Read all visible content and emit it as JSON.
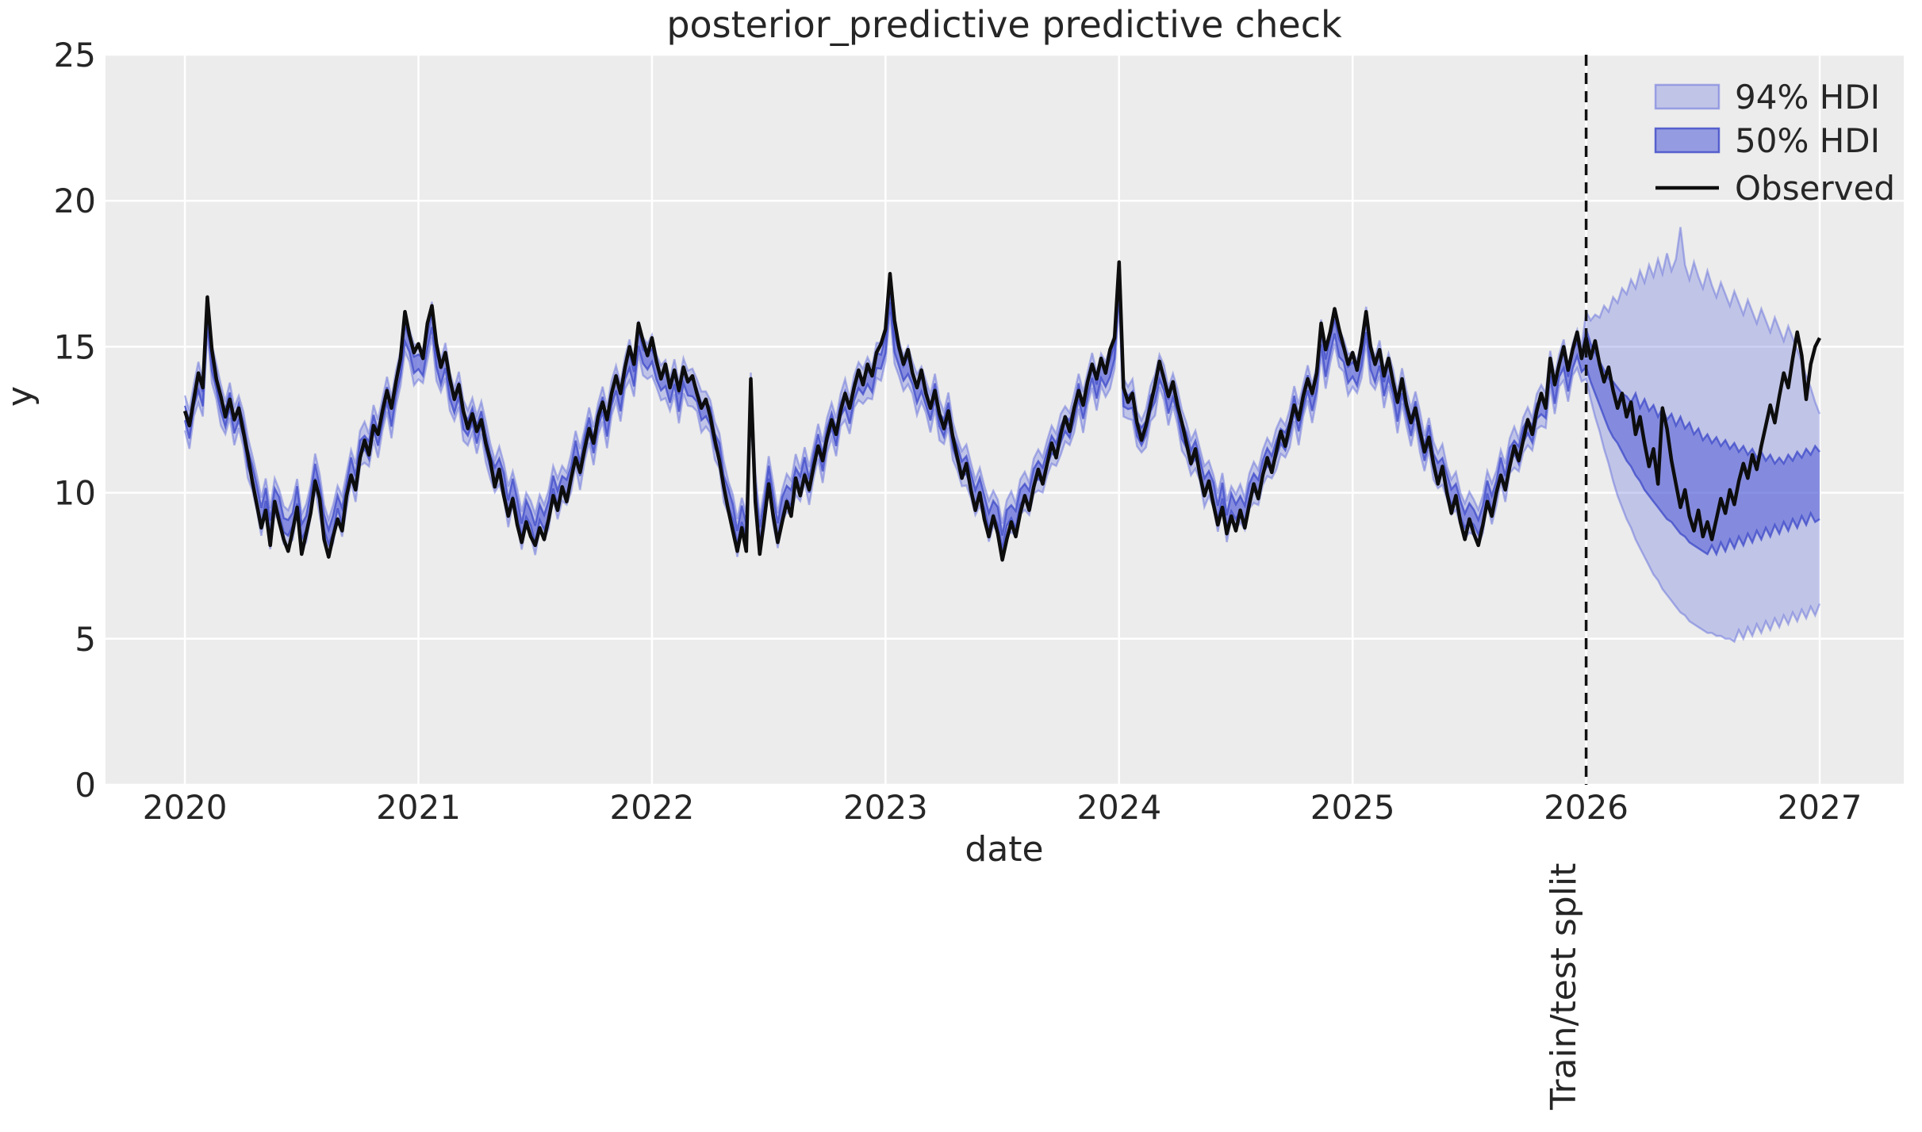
{
  "figure": {
    "title": "posterior_predictive predictive check"
  },
  "axes": {
    "xlabel": "date",
    "ylabel": "y",
    "xlim": [
      2019.66,
      2027.36
    ],
    "ylim": [
      0,
      25
    ],
    "x_ticks": [
      "2020",
      "2021",
      "2022",
      "2023",
      "2024",
      "2025",
      "2026",
      "2027"
    ],
    "x_tick_values": [
      2020,
      2021,
      2022,
      2023,
      2024,
      2025,
      2026,
      2027
    ],
    "y_ticks": [
      "0",
      "5",
      "10",
      "15",
      "20",
      "25"
    ],
    "y_tick_values": [
      0,
      5,
      10,
      15,
      20,
      25
    ],
    "grid": "white-on-gray"
  },
  "legend": {
    "position": "upper-right",
    "items": [
      {
        "label": "94% HDI",
        "type": "patch"
      },
      {
        "label": "50% HDI",
        "type": "patch"
      },
      {
        "label": "Observed",
        "type": "line"
      }
    ]
  },
  "annotation": {
    "split_label": "Train/test split",
    "split_x": 2026
  },
  "colors": {
    "figure_bg": "#ffffff",
    "plot_bg": "#ECECEC",
    "grid": "#ffffff",
    "band_base": "#5B66D9",
    "band94_alpha": 0.3,
    "band50_alpha": 0.6,
    "band94_edge": "rgba(91,102,217,0.45)",
    "band50_edge": "rgba(60,72,200,0.75)",
    "observed": "#0d0d0d",
    "split_line": "#111111",
    "text": "#262626"
  },
  "chart_data": {
    "type": "line",
    "title": "posterior_predictive predictive check",
    "xlabel": "date",
    "ylabel": "y",
    "x_start": 2020,
    "x_end": 2027,
    "points_per_year": 52,
    "n_points": 365,
    "observed": [
      12.8,
      12.3,
      13.2,
      14.1,
      13.6,
      16.7,
      14.9,
      13.9,
      13.3,
      12.6,
      13.2,
      12.5,
      12.9,
      12.1,
      11.3,
      10.4,
      9.6,
      8.8,
      9.4,
      8.2,
      9.7,
      9.0,
      8.4,
      8.0,
      8.7,
      9.5,
      7.9,
      8.6,
      9.3,
      10.4,
      9.8,
      8.4,
      7.8,
      8.5,
      9.1,
      8.7,
      9.9,
      10.6,
      10.1,
      11.2,
      11.8,
      11.3,
      12.3,
      12.0,
      12.8,
      13.5,
      12.9,
      13.8,
      14.6,
      16.2,
      15.4,
      14.8,
      15.1,
      14.6,
      15.8,
      16.4,
      15.1,
      14.3,
      14.8,
      13.9,
      13.2,
      13.7,
      12.8,
      12.2,
      12.7,
      12.1,
      12.5,
      11.7,
      11.1,
      10.2,
      10.8,
      9.9,
      9.2,
      9.8,
      8.9,
      8.3,
      9.0,
      8.5,
      8.2,
      8.8,
      8.4,
      9.1,
      9.9,
      9.4,
      10.2,
      9.7,
      10.5,
      11.2,
      10.7,
      11.5,
      12.2,
      11.7,
      12.6,
      13.1,
      12.5,
      13.4,
      14.0,
      13.4,
      14.3,
      15.0,
      14.4,
      15.8,
      15.2,
      14.7,
      15.3,
      14.5,
      13.9,
      14.4,
      13.6,
      14.2,
      13.5,
      14.3,
      13.8,
      14.0,
      13.4,
      12.9,
      13.2,
      12.6,
      11.8,
      11.1,
      10.2,
      9.4,
      8.7,
      8.0,
      8.8,
      8.0,
      13.9,
      9.7,
      7.9,
      9.1,
      10.3,
      9.2,
      8.3,
      9.0,
      9.7,
      9.2,
      10.5,
      9.9,
      10.6,
      10.1,
      10.9,
      11.6,
      11.1,
      11.9,
      12.5,
      12.0,
      12.8,
      13.4,
      12.9,
      13.6,
      14.2,
      13.7,
      14.4,
      14.0,
      14.8,
      15.1,
      15.6,
      17.5,
      15.9,
      15.0,
      14.4,
      14.9,
      14.1,
      13.6,
      14.2,
      13.4,
      12.9,
      13.5,
      12.7,
      12.2,
      12.8,
      11.9,
      11.2,
      10.5,
      11.0,
      10.1,
      9.4,
      10.0,
      9.1,
      8.5,
      9.2,
      8.6,
      7.7,
      8.4,
      9.0,
      8.5,
      9.3,
      9.9,
      9.4,
      10.2,
      10.8,
      10.3,
      11.0,
      11.7,
      11.2,
      12.0,
      12.6,
      12.1,
      12.9,
      13.5,
      13.0,
      13.8,
      14.4,
      13.9,
      14.6,
      14.1,
      14.9,
      15.3,
      17.9,
      13.6,
      13.1,
      13.4,
      12.4,
      11.8,
      12.3,
      13.0,
      13.7,
      14.5,
      13.9,
      13.3,
      13.8,
      13.0,
      12.4,
      11.7,
      11.0,
      11.5,
      10.6,
      9.9,
      10.4,
      9.6,
      8.9,
      9.5,
      8.6,
      9.2,
      8.7,
      9.4,
      8.8,
      9.6,
      10.3,
      9.8,
      10.6,
      11.2,
      10.7,
      11.4,
      12.1,
      11.6,
      12.3,
      13.0,
      12.5,
      13.3,
      13.9,
      13.4,
      14.1,
      15.8,
      14.9,
      15.5,
      16.3,
      15.6,
      15.0,
      14.4,
      14.8,
      14.2,
      15.1,
      16.2,
      15.0,
      14.4,
      14.9,
      14.0,
      14.6,
      13.8,
      13.1,
      13.9,
      13.0,
      12.4,
      12.9,
      12.1,
      11.4,
      11.9,
      11.0,
      10.3,
      10.9,
      10.0,
      9.3,
      9.9,
      9.0,
      8.4,
      9.1,
      8.6,
      8.2,
      8.9,
      9.7,
      9.2,
      10.0,
      10.6,
      10.1,
      10.9,
      11.6,
      11.1,
      11.8,
      12.5,
      12.0,
      12.8,
      13.4,
      12.9,
      14.6,
      13.7,
      14.4,
      15.0,
      14.2,
      14.9,
      15.5,
      14.6,
      15.3,
      14.6,
      15.2,
      14.4,
      13.8,
      14.3,
      13.5,
      12.9,
      13.4,
      12.6,
      13.1,
      12.0,
      12.6,
      11.7,
      10.9,
      11.5,
      10.3,
      12.9,
      12.2,
      11.1,
      10.3,
      9.5,
      10.1,
      9.2,
      8.7,
      9.4,
      8.5,
      9.0,
      8.4,
      9.1,
      9.8,
      9.3,
      10.1,
      9.6,
      10.4,
      11.0,
      10.5,
      11.3,
      10.8,
      11.6,
      12.3,
      13.0,
      12.4,
      13.3,
      14.1,
      13.6,
      14.6,
      15.5,
      14.7,
      13.2,
      14.4,
      15.0,
      15.3
    ],
    "train_bands": {
      "description": "In-sample HDI bands hug the observed line; center = observed shrunk toward mean plus offset, half-widths cycle through patterns",
      "mean": 12,
      "center_shrink": 0.15,
      "center_offset_pattern": [
        0.05,
        -0.1,
        0.15,
        0.0,
        -0.15,
        0.1,
        -0.05,
        0.2,
        -0.1,
        0.05,
        0.15,
        -0.15,
        0.0,
        0.1,
        -0.2,
        0.05
      ],
      "hw94_pattern": [
        0.6,
        0.65,
        0.55,
        0.7,
        0.6,
        0.55,
        0.65,
        0.6,
        0.7,
        0.55,
        0.6,
        0.65,
        0.55,
        0.6,
        0.7,
        0.6
      ],
      "hw50_pattern": [
        0.25,
        0.3,
        0.22,
        0.28,
        0.25,
        0.3,
        0.24,
        0.27,
        0.22,
        0.3,
        0.26,
        0.24,
        0.28,
        0.25,
        0.3,
        0.26
      ]
    },
    "forecast": {
      "start_week": 312,
      "hdi94_upper": [
        16.2,
        15.9,
        16.1,
        16.0,
        16.4,
        16.2,
        16.7,
        16.5,
        17.0,
        16.8,
        17.3,
        17.0,
        17.6,
        17.2,
        17.8,
        17.4,
        18.0,
        17.5,
        18.2,
        17.6,
        18.0,
        19.1,
        17.8,
        17.3,
        17.9,
        17.4,
        17.0,
        17.6,
        17.1,
        16.7,
        17.2,
        16.8,
        16.4,
        16.9,
        16.5,
        16.1,
        16.6,
        16.2,
        15.8,
        16.3,
        15.9,
        15.5,
        16.0,
        15.6,
        15.2,
        15.7,
        15.3,
        14.9,
        14.5,
        14.0,
        13.6,
        13.1,
        12.7
      ],
      "hdi94_lower": [
        13.9,
        13.2,
        12.6,
        12.1,
        11.5,
        11.0,
        10.4,
        9.9,
        9.5,
        9.1,
        8.8,
        8.4,
        8.1,
        7.8,
        7.5,
        7.2,
        7.0,
        6.7,
        6.5,
        6.3,
        6.1,
        5.9,
        5.8,
        5.6,
        5.5,
        5.4,
        5.3,
        5.2,
        5.2,
        5.1,
        5.1,
        5.0,
        5.0,
        4.9,
        5.3,
        5.0,
        5.4,
        5.1,
        5.5,
        5.2,
        5.6,
        5.3,
        5.7,
        5.4,
        5.8,
        5.5,
        5.9,
        5.6,
        6.0,
        5.7,
        6.1,
        5.8,
        6.2
      ],
      "hdi50_upper": [
        15.6,
        15.1,
        14.8,
        14.5,
        14.2,
        13.9,
        13.8,
        13.6,
        13.4,
        13.3,
        13.1,
        13.4,
        12.9,
        13.2,
        12.8,
        13.0,
        12.6,
        12.9,
        12.5,
        12.7,
        12.3,
        12.6,
        12.2,
        12.4,
        12.0,
        12.2,
        11.8,
        12.0,
        11.7,
        11.9,
        11.6,
        11.8,
        11.5,
        11.7,
        11.4,
        11.6,
        11.3,
        11.5,
        11.2,
        11.4,
        11.1,
        11.3,
        11.0,
        11.2,
        11.0,
        11.3,
        11.1,
        11.4,
        11.2,
        11.5,
        11.3,
        11.6,
        11.4
      ],
      "hdi50_lower": [
        14.3,
        13.8,
        13.4,
        13.0,
        12.6,
        12.2,
        11.9,
        11.7,
        11.4,
        11.1,
        10.9,
        10.6,
        10.4,
        10.1,
        9.9,
        9.7,
        9.5,
        9.3,
        9.1,
        9.0,
        8.8,
        8.6,
        8.5,
        8.3,
        8.2,
        8.1,
        8.0,
        7.9,
        8.2,
        7.9,
        8.3,
        8.0,
        8.4,
        8.1,
        8.5,
        8.2,
        8.6,
        8.3,
        8.7,
        8.4,
        8.8,
        8.5,
        8.9,
        8.6,
        9.0,
        8.7,
        9.1,
        8.8,
        9.2,
        8.9,
        9.3,
        9.0,
        9.1
      ]
    }
  }
}
